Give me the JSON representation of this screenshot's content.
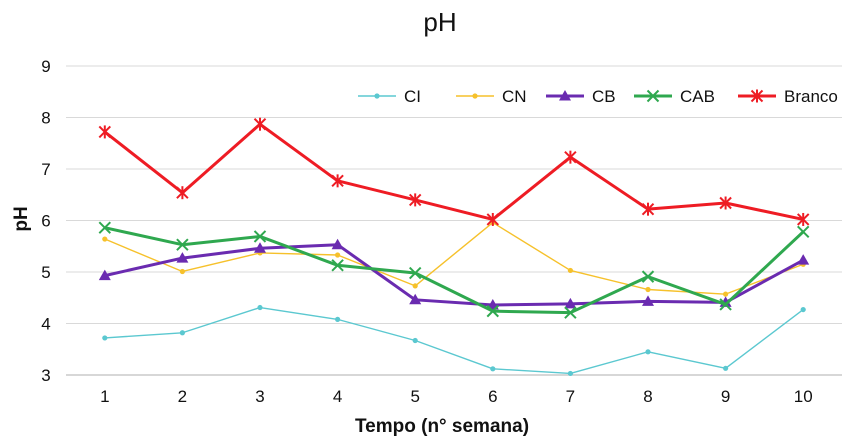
{
  "chart_data": {
    "type": "line",
    "title": "pH",
    "xlabel": "Tempo (n° semana)",
    "ylabel": "pH",
    "categories": [
      "1",
      "2",
      "3",
      "4",
      "5",
      "6",
      "7",
      "8",
      "9",
      "10"
    ],
    "yticks": [
      "3",
      "4",
      "5",
      "6",
      "7",
      "8",
      "9"
    ],
    "ylim": [
      3,
      9
    ],
    "grid": true,
    "legend_position": "top-right",
    "series": [
      {
        "name": "CI",
        "color": "#5bc8d0",
        "marker": "dot",
        "values": [
          3.72,
          3.82,
          4.31,
          4.08,
          3.67,
          3.12,
          3.03,
          3.45,
          3.13,
          4.27
        ]
      },
      {
        "name": "CN",
        "color": "#f6c12b",
        "marker": "dot",
        "values": [
          5.64,
          5.01,
          5.37,
          5.33,
          4.73,
          5.96,
          5.03,
          4.66,
          4.57,
          5.15
        ]
      },
      {
        "name": "CB",
        "color": "#6a2bb0",
        "marker": "triangle",
        "values": [
          4.93,
          5.27,
          5.46,
          5.53,
          4.46,
          4.36,
          4.38,
          4.43,
          4.41,
          5.23
        ]
      },
      {
        "name": "CAB",
        "color": "#2fa84f",
        "marker": "x",
        "values": [
          5.86,
          5.53,
          5.69,
          5.13,
          4.98,
          4.24,
          4.21,
          4.91,
          4.37,
          5.78
        ]
      },
      {
        "name": "Branco",
        "color": "#ee1c24",
        "marker": "star",
        "values": [
          7.72,
          6.54,
          7.87,
          6.77,
          6.4,
          6.02,
          7.23,
          6.22,
          6.34,
          6.02
        ]
      }
    ]
  }
}
